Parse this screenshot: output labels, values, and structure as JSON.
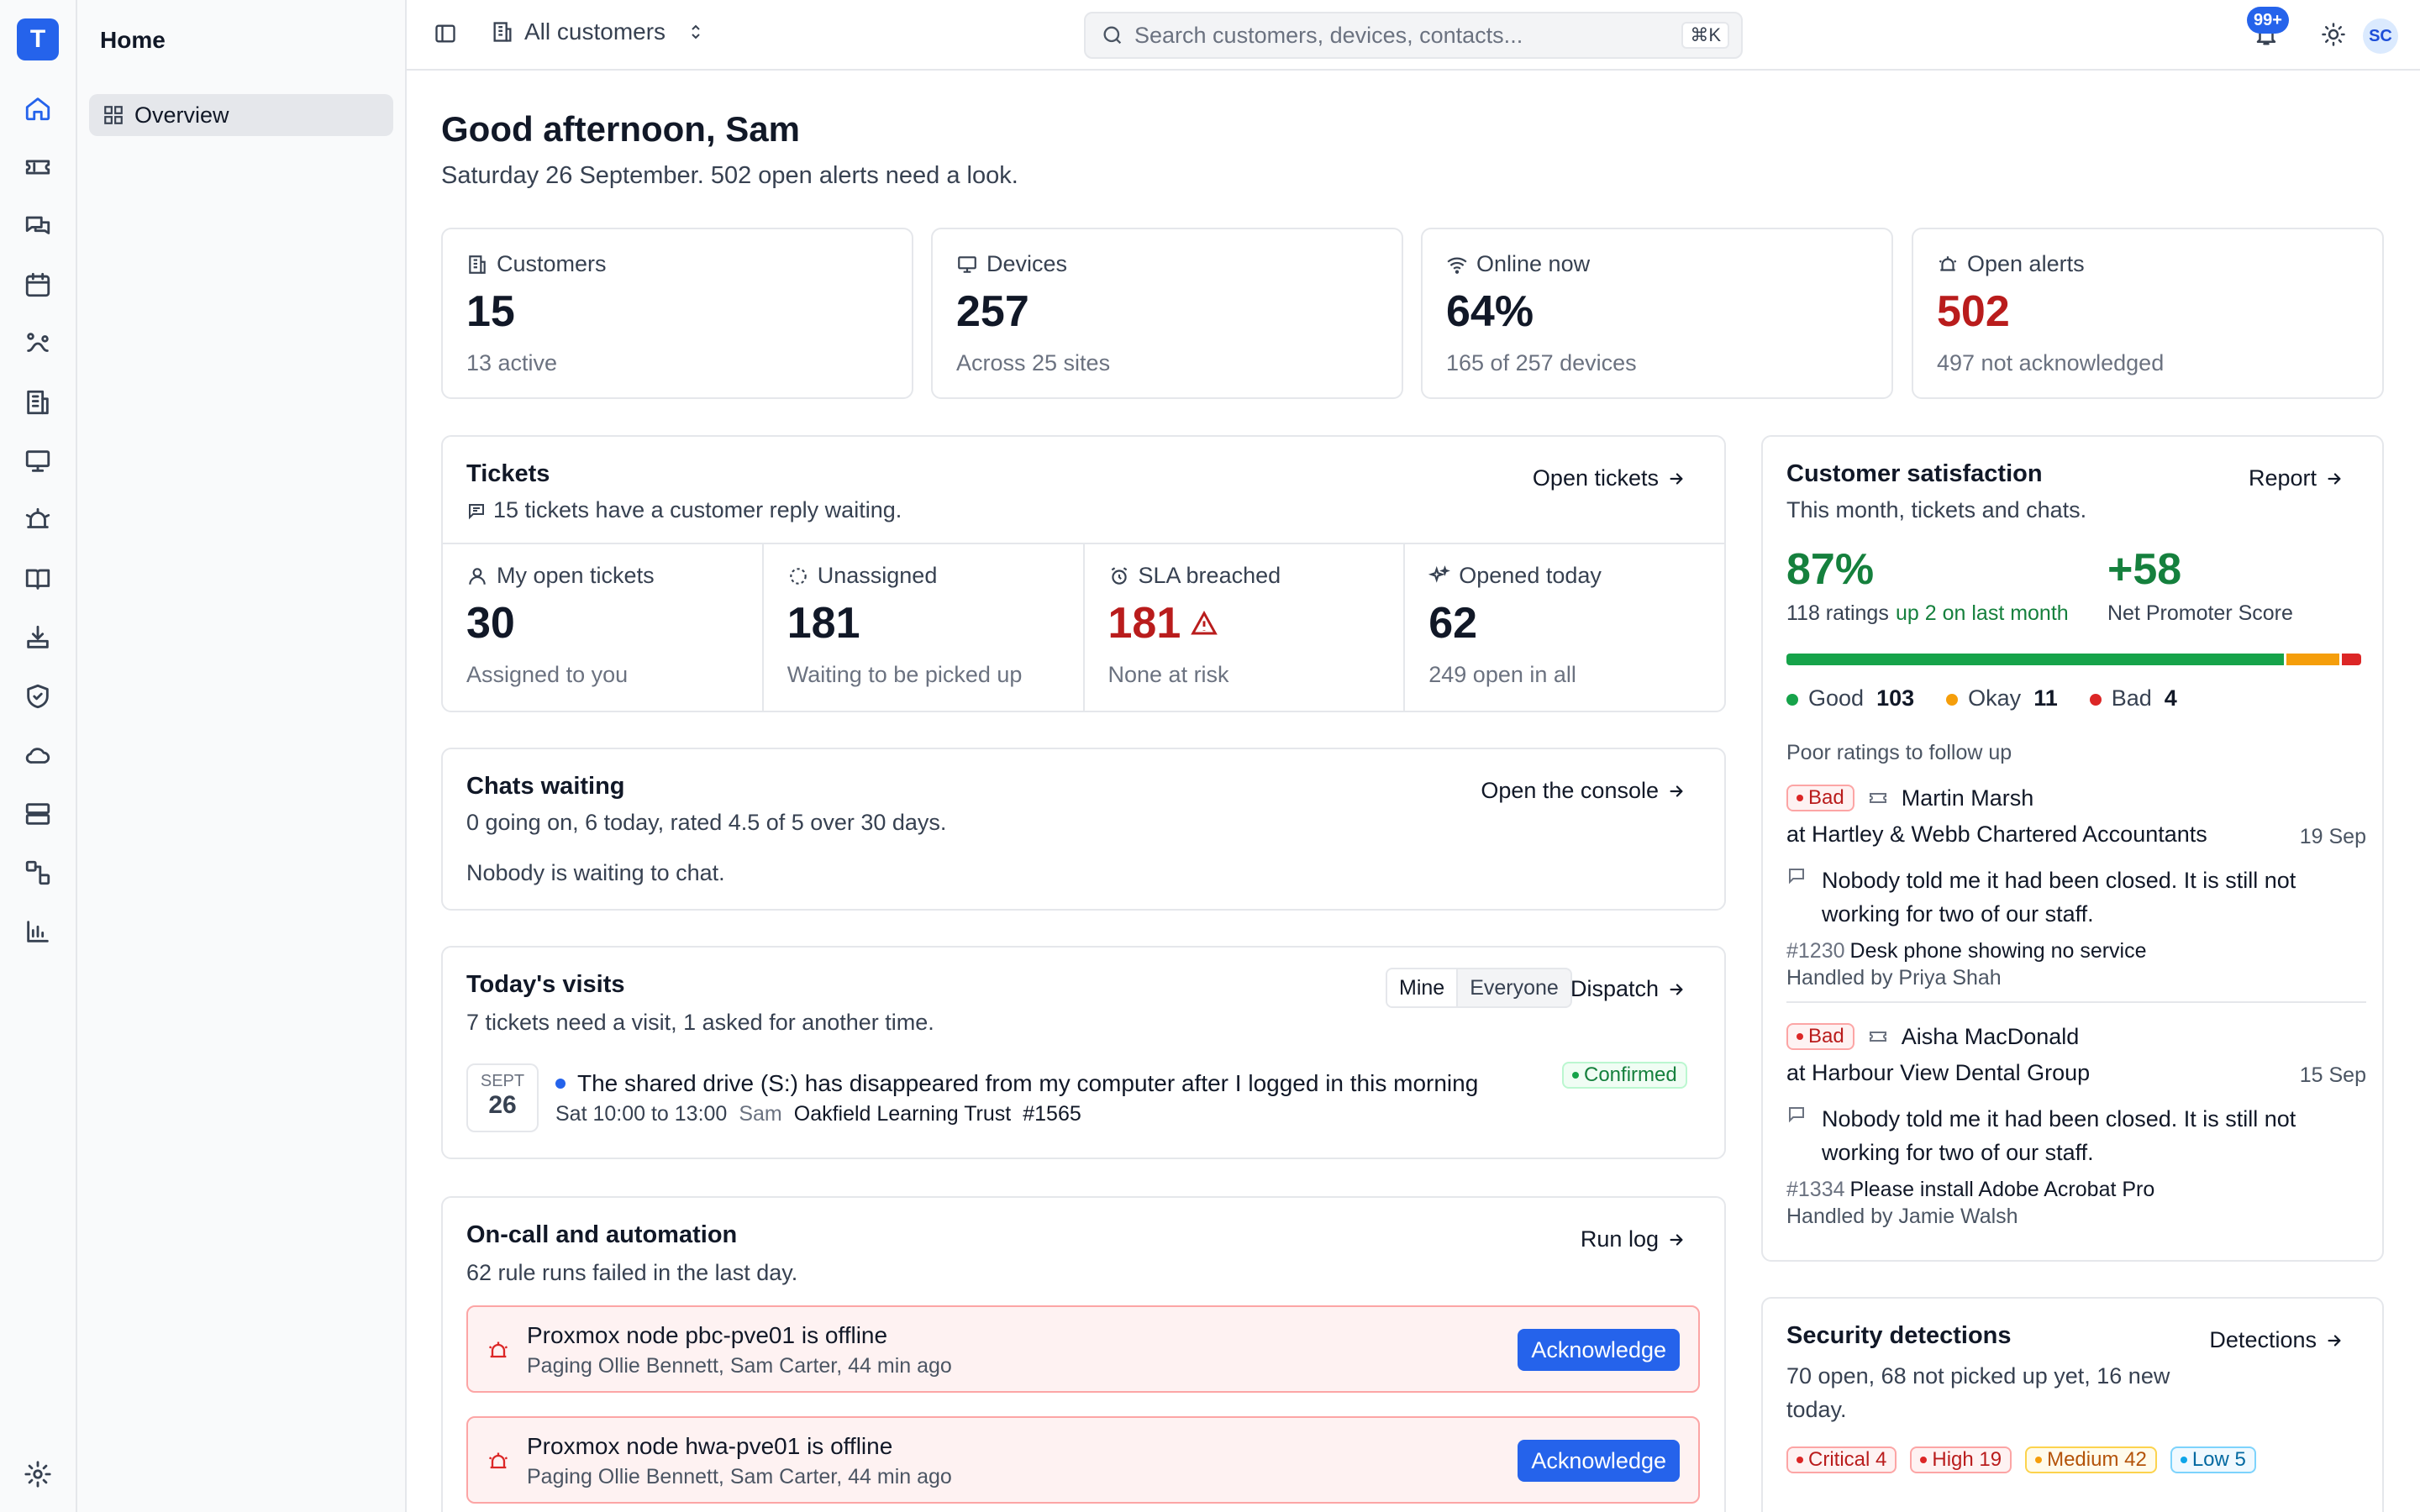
{
  "app": {
    "logo_letter": "T"
  },
  "sidebar": {
    "title": "Home",
    "items": [
      {
        "label": "Overview",
        "icon": "overview-icon"
      }
    ]
  },
  "rail": {
    "icons": [
      "home-icon",
      "tickets-icon",
      "chats-icon",
      "calendar-icon",
      "dispatch-icon",
      "customers-icon",
      "devices-icon",
      "alerts-icon",
      "knowledge-icon",
      "downloads-icon",
      "security-icon",
      "cloud-icon",
      "servers-icon",
      "automation-icon",
      "reports-icon",
      "settings-icon"
    ]
  },
  "topbar": {
    "scope_label": "All customers",
    "search_placeholder": "Search customers, devices, contacts...",
    "search_shortcut": "⌘K",
    "notifications_badge": "99+",
    "avatar_initials": "SC"
  },
  "greeting": {
    "title": "Good afternoon, Sam",
    "subtitle": "Saturday 26 September. 502 open alerts need a look."
  },
  "stats": [
    {
      "label": "Customers",
      "value": "15",
      "sub": "13 active"
    },
    {
      "label": "Devices",
      "value": "257",
      "sub": "Across 25 sites"
    },
    {
      "label": "Online now",
      "value": "64%",
      "sub": "165 of 257 devices"
    },
    {
      "label": "Open alerts",
      "value": "502",
      "sub": "497 not acknowledged"
    }
  ],
  "tickets": {
    "title": "Tickets",
    "desc": "15 tickets have a customer reply waiting.",
    "link": "Open tickets",
    "cells": [
      {
        "label": "My open tickets",
        "value": "30",
        "sub": "Assigned to you"
      },
      {
        "label": "Unassigned",
        "value": "181",
        "sub": "Waiting to be picked up"
      },
      {
        "label": "SLA breached",
        "value": "181",
        "sub": "None at risk"
      },
      {
        "label": "Opened today",
        "value": "62",
        "sub": "249 open in all"
      }
    ]
  },
  "chats": {
    "title": "Chats waiting",
    "desc": "0 going on, 6 today, rated 4.5 of 5 over 30 days.",
    "empty": "Nobody is waiting to chat.",
    "link": "Open the console"
  },
  "visits": {
    "title": "Today's visits",
    "desc": "7 tickets need a visit, 1 asked for another time.",
    "toggle": [
      "Mine",
      "Everyone"
    ],
    "link": "Dispatch",
    "item": {
      "month": "SEPT",
      "day": "26",
      "title": "The shared drive (S:) has disappeared from my computer after I logged in this morning",
      "time": "Sat 10:00 to 13:00",
      "tech": "Sam",
      "customer": "Oakfield Learning Trust",
      "ticket": "#1565",
      "status": "Confirmed"
    }
  },
  "oncall": {
    "title": "On-call and automation",
    "desc": "62 rule runs failed in the last day.",
    "link": "Run log",
    "alerts": [
      {
        "title": "Proxmox node pbc-pve01 is offline",
        "sub": "Paging Ollie Bennett, Sam Carter, 44 min ago",
        "action": "Acknowledge"
      },
      {
        "title": "Proxmox node hwa-pve01 is offline",
        "sub": "Paging Ollie Bennett, Sam Carter, 44 min ago",
        "action": "Acknowledge"
      }
    ]
  },
  "csat": {
    "title": "Customer satisfaction",
    "desc": "This month, tickets and chats.",
    "link": "Report",
    "percent": "87%",
    "ratings": "118 ratings",
    "trend": "up 2 on last month",
    "nps": "+58",
    "nps_label": "Net Promoter Score",
    "bar_fractions": {
      "good": 0.873,
      "okay": 0.093,
      "bad": 0.034
    },
    "legend": [
      {
        "label": "Good",
        "count": "103",
        "color": "#16a34a"
      },
      {
        "label": "Okay",
        "count": "11",
        "color": "#f59e0b"
      },
      {
        "label": "Bad",
        "count": "4",
        "color": "#dc2626"
      }
    ],
    "poor_heading": "Poor ratings to follow up",
    "reviews": [
      {
        "rating": "Bad",
        "name": "Martin Marsh",
        "company": "at Hartley & Webb Chartered Accountants",
        "date": "19 Sep",
        "comment": "Nobody told me it had been closed. It is still not working for two of our staff.",
        "ticket": "#1230",
        "ticket_title": "Desk phone showing no service",
        "handler": "Handled by Priya Shah"
      },
      {
        "rating": "Bad",
        "name": "Aisha MacDonald",
        "company": "at Harbour View Dental Group",
        "date": "15 Sep",
        "comment": "Nobody told me it had been closed. It is still not working for two of our staff.",
        "ticket": "#1334",
        "ticket_title": "Please install Adobe Acrobat Pro",
        "handler": "Handled by Jamie Walsh"
      }
    ]
  },
  "security": {
    "title": "Security detections",
    "desc": "70 open, 68 not picked up yet, 16 new today.",
    "link": "Detections",
    "tags": [
      {
        "label": "Critical 4",
        "color": "#dc2626",
        "bg": "#fef2f2"
      },
      {
        "label": "High 19",
        "color": "#dc2626",
        "bg": "#fef2f2"
      },
      {
        "label": "Medium 42",
        "color": "#b45309",
        "bg": "#fffbeb"
      },
      {
        "label": "Low 5",
        "color": "#0369a1",
        "bg": "#f0f9ff"
      }
    ]
  }
}
